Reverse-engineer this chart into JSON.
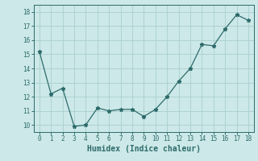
{
  "x": [
    0,
    1,
    2,
    3,
    4,
    5,
    6,
    7,
    8,
    9,
    10,
    11,
    12,
    13,
    14,
    15,
    16,
    17,
    18
  ],
  "y": [
    15.2,
    12.2,
    12.6,
    9.9,
    10.0,
    11.2,
    11.0,
    11.1,
    11.1,
    10.6,
    11.1,
    12.0,
    13.1,
    14.0,
    15.7,
    15.6,
    16.8,
    17.8,
    17.4
  ],
  "line_color": "#2e6b6b",
  "marker": "*",
  "marker_size": 3.5,
  "xlabel": "Humidex (Indice chaleur)",
  "xlim": [
    -0.5,
    18.5
  ],
  "ylim": [
    9.5,
    18.5
  ],
  "yticks": [
    10,
    11,
    12,
    13,
    14,
    15,
    16,
    17,
    18
  ],
  "xticks": [
    0,
    1,
    2,
    3,
    4,
    5,
    6,
    7,
    8,
    9,
    10,
    11,
    12,
    13,
    14,
    15,
    16,
    17,
    18
  ],
  "bg_color": "#cce8e8",
  "grid_color": "#aacece",
  "tick_color": "#2e6b6b",
  "xlabel_fontsize": 7,
  "tick_fontsize": 5.5
}
